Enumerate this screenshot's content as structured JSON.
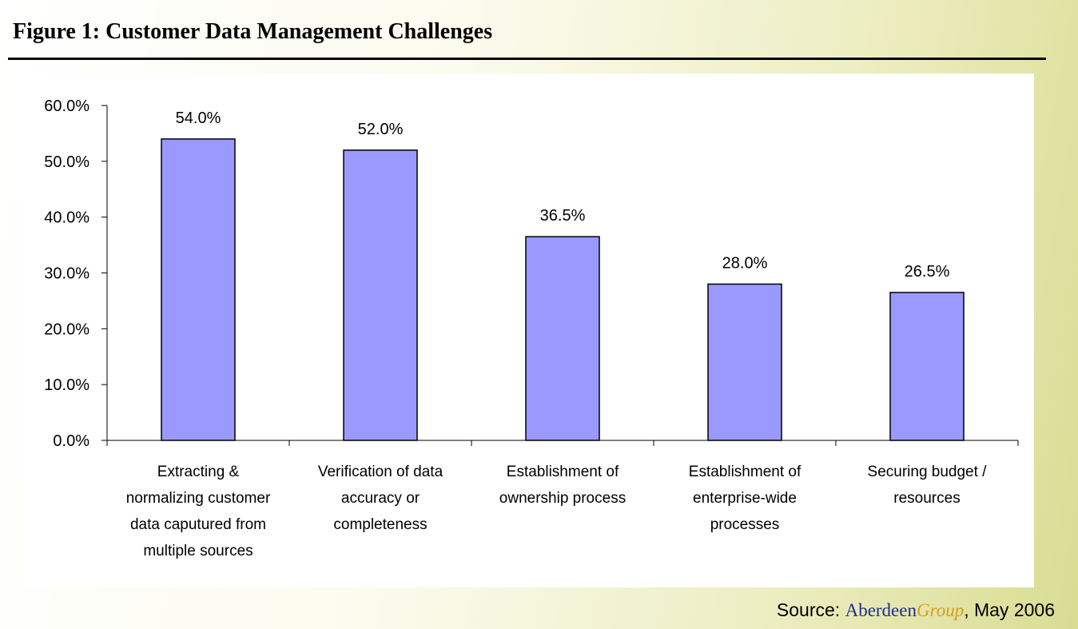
{
  "figure": {
    "title": "Figure 1: Customer Data Management Challenges",
    "source": {
      "prefix": "Source: ",
      "brand_part1": "Aberdeen",
      "brand_part2": "Group",
      "suffix": ", May 2006"
    }
  },
  "colors": {
    "bar_fill": "#9999ff",
    "bar_stroke": "#000000",
    "axis": "#000000",
    "brand_blue": "#1a2f8c",
    "brand_gold": "#d4a017"
  },
  "chart_data": {
    "type": "bar",
    "title": "",
    "xlabel": "",
    "ylabel": "",
    "ylim": [
      0,
      60
    ],
    "yticks": [
      "0.0%",
      "10.0%",
      "20.0%",
      "30.0%",
      "40.0%",
      "50.0%",
      "60.0%"
    ],
    "grid": false,
    "legend": "none",
    "categories": [
      [
        "Extracting &",
        "normalizing customer",
        "data caputured from",
        "multiple sources"
      ],
      [
        "Verification of data",
        "accuracy or",
        "completeness"
      ],
      [
        "Establishment of",
        "ownership process"
      ],
      [
        "Establishment of",
        "enterprise-wide",
        "processes"
      ],
      [
        "Securing budget /",
        "resources"
      ]
    ],
    "values": [
      54.0,
      52.0,
      36.5,
      28.0,
      26.5
    ],
    "data_labels": [
      "54.0%",
      "52.0%",
      "36.5%",
      "28.0%",
      "26.5%"
    ]
  }
}
